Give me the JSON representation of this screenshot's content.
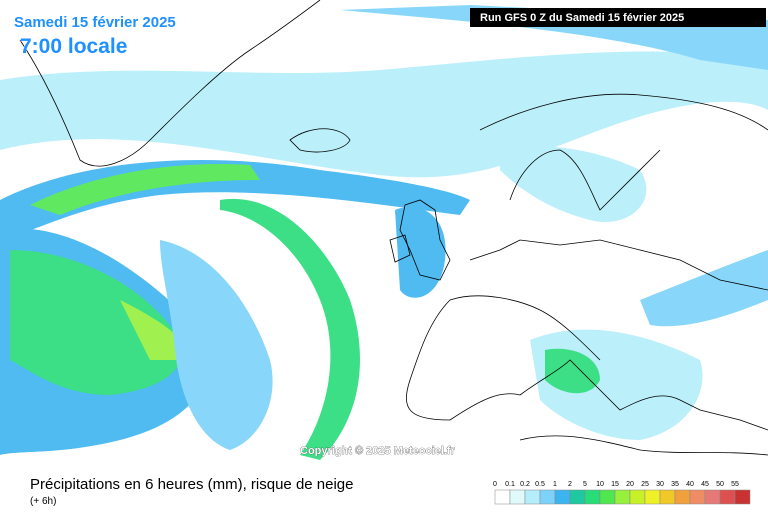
{
  "header": {
    "date": "Samedi 15 février 2025",
    "time": "7:00 locale",
    "run": "Run GFS 0 Z du Samedi 15 février 2025"
  },
  "copyright": "Copyright © 2025 Meteociel.fr",
  "footer": {
    "title": "Précipitations en 6 heures (mm), risque de neige",
    "subtitle": "(+ 6h)"
  },
  "legend": {
    "items": [
      {
        "label": "0",
        "color": "#ffffff"
      },
      {
        "label": "0.1",
        "color": "#e0fafa"
      },
      {
        "label": "0.2",
        "color": "#b4eefa"
      },
      {
        "label": "0.5",
        "color": "#7cd2fa"
      },
      {
        "label": "1",
        "color": "#3cb4f0"
      },
      {
        "label": "2",
        "color": "#1ec8a0"
      },
      {
        "label": "5",
        "color": "#28dc78"
      },
      {
        "label": "10",
        "color": "#50e650"
      },
      {
        "label": "15",
        "color": "#96f03c"
      },
      {
        "label": "20",
        "color": "#c8f028"
      },
      {
        "label": "25",
        "color": "#f0f028"
      },
      {
        "label": "30",
        "color": "#f0c828"
      },
      {
        "label": "35",
        "color": "#f0a03c"
      },
      {
        "label": "40",
        "color": "#f08c64"
      },
      {
        "label": "45",
        "color": "#e67878"
      },
      {
        "label": "50",
        "color": "#dc5050"
      },
      {
        "label": "55",
        "color": "#c83232"
      }
    ]
  }
}
